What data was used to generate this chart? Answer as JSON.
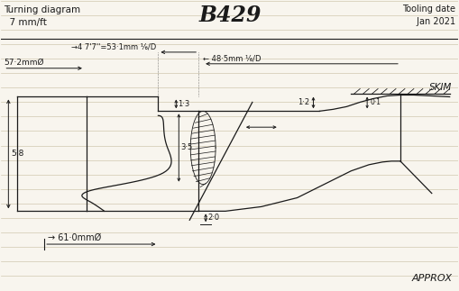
{
  "bg_color": "#f8f5ee",
  "line_color": "#1a1a1a",
  "ruled_color": "#d0c8b0",
  "title_left": "Turning diagram\n  7 mm/ft",
  "title_center": "B429",
  "title_right": "Tooling date\n Jan 2021",
  "label_572": "57·2mmØ",
  "label_531": "→4 7'7''=53·1mm ⅙/D",
  "label_485": "← 48·5mm ⅙/D",
  "label_12": "1·2",
  "label_01": "0·1",
  "label_13": "1·3",
  "label_35": "3·5",
  "label_20": "2·0",
  "label_58": "5·8",
  "label_610": "→ 61·0mmØ",
  "label_skim": "SKIM",
  "label_approx": "APPROX"
}
